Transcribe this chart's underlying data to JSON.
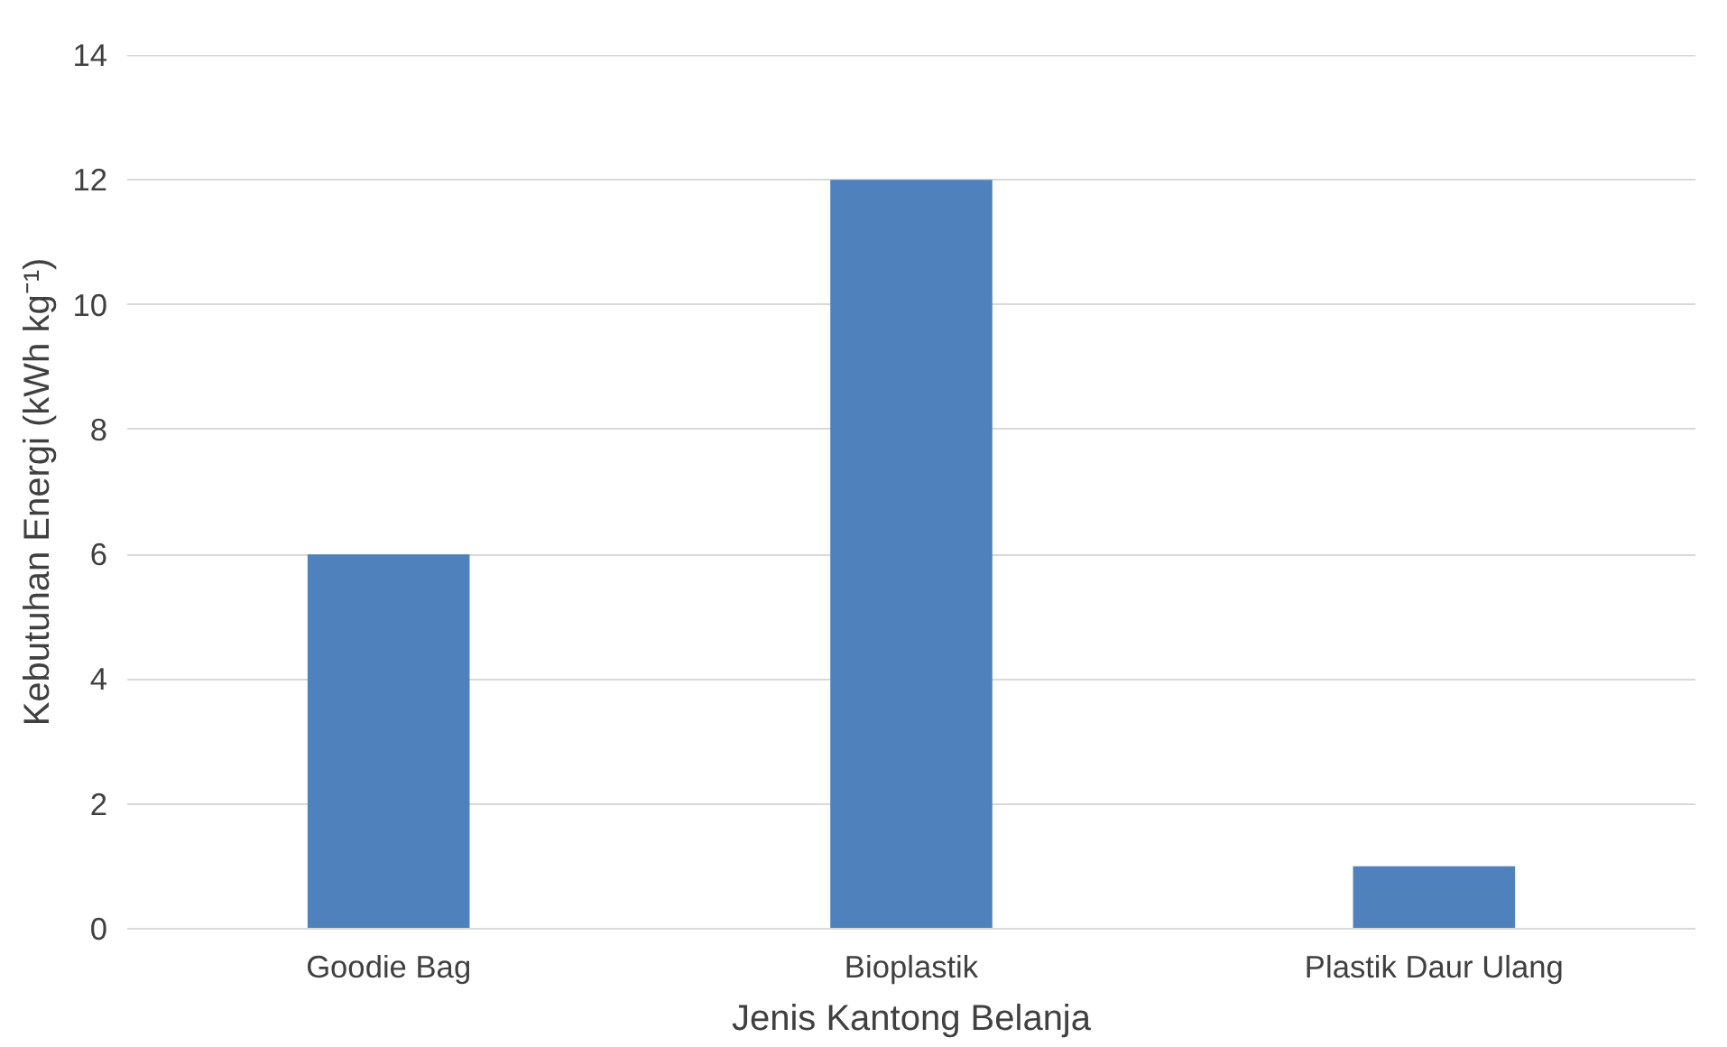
{
  "chart_data": {
    "type": "bar",
    "xlabel": "Jenis Kantong Belanja",
    "ylabel": "Kebutuhan Energi (kWh kg⁻¹)",
    "categories": [
      "Goodie Bag",
      "Bioplastik",
      "Plastik Daur Ulang"
    ],
    "values": [
      6,
      12,
      1
    ],
    "color": "#4f81bd",
    "ylim": [
      0,
      14
    ],
    "yticks": [
      0,
      2,
      4,
      6,
      8,
      10,
      12,
      14
    ],
    "grid": "y"
  }
}
